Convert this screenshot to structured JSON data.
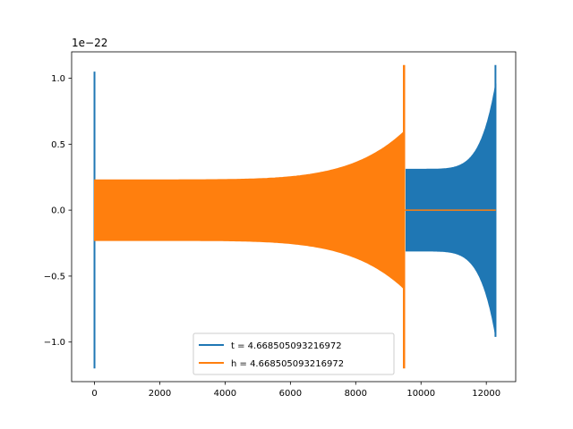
{
  "chart_data": {
    "type": "line",
    "title": "",
    "xlabel": "",
    "ylabel": "",
    "xlim": [
      -700,
      12900
    ],
    "ylim": [
      -1.3,
      1.2
    ],
    "y_offset_label": "1e−22",
    "x_ticks": [
      0,
      2000,
      4000,
      6000,
      8000,
      10000,
      12000
    ],
    "y_ticks": [
      -1.0,
      -0.5,
      0.0,
      0.5,
      1.0
    ],
    "x_tick_labels": [
      "0",
      "2000",
      "4000",
      "6000",
      "8000",
      "10000",
      "12000"
    ],
    "y_tick_labels": [
      "−1.0",
      "−0.5",
      "0.0",
      "0.5",
      "1.0"
    ],
    "grid": false,
    "legend_position": "lower-center",
    "series": [
      {
        "name": "t = 4.668505093216972",
        "color": "#1f77b4",
        "spike": {
          "x": 0,
          "max": 1.05,
          "min": -1.2
        },
        "envelope": {
          "start": 9540,
          "end": 12290,
          "start_amp": 0.31,
          "end_amp": 0.96,
          "end_peak_max": 1.1,
          "end_peak_min": -0.96
        }
      },
      {
        "name": "h = 4.668505093216972",
        "color": "#ff7f0e",
        "envelope": {
          "start": 0,
          "end": 9500,
          "start_amp": 0.23,
          "end_amp": 0.6,
          "end_peak_max": 1.1,
          "end_peak_min": -1.2
        },
        "tail": {
          "start": 9500,
          "end": 12290,
          "value": 0.0
        }
      }
    ]
  }
}
